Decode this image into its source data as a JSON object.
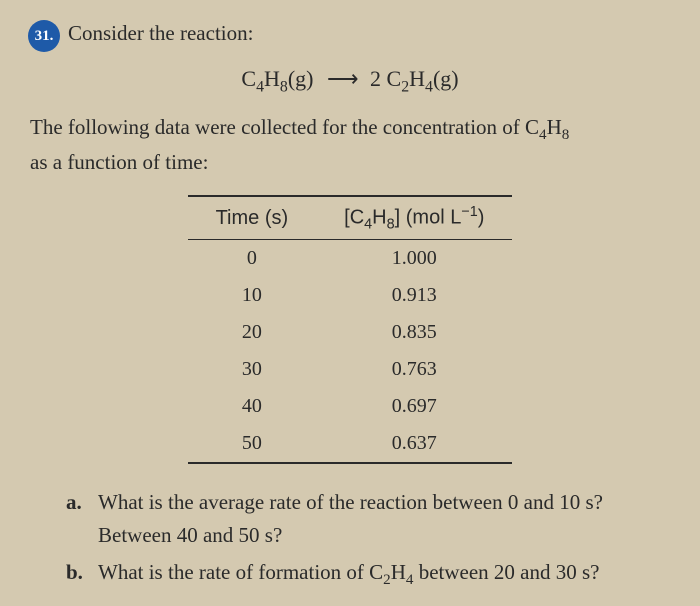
{
  "background_color": "#d4c9b0",
  "text_color": "#2a2a2a",
  "badge_color": "#1e5aa8",
  "question_number": "31.",
  "prompt_text": "Consider the reaction:",
  "equation": {
    "left": "C₄H₈(g)",
    "arrow": "⟶",
    "right": "2 C₂H₄(g)"
  },
  "description_line1": "The following data were collected for the concentration of C₄H₈",
  "description_line2": "as a function of time:",
  "table": {
    "columns": [
      "Time (s)",
      "[C₄H₈] (mol L⁻¹)"
    ],
    "rows": [
      [
        "0",
        "1.000"
      ],
      [
        "10",
        "0.913"
      ],
      [
        "20",
        "0.835"
      ],
      [
        "30",
        "0.763"
      ],
      [
        "40",
        "0.697"
      ],
      [
        "50",
        "0.637"
      ]
    ],
    "header_fontsize": 20,
    "cell_fontsize": 20,
    "border_color": "#2a2a2a"
  },
  "subquestions": [
    {
      "label": "a.",
      "text": "What is the average rate of the reaction between 0 and 10 s? Between 40 and 50 s?"
    },
    {
      "label": "b.",
      "text": "What is the rate of formation of C₂H₄ between 20 and 30 s?"
    }
  ]
}
